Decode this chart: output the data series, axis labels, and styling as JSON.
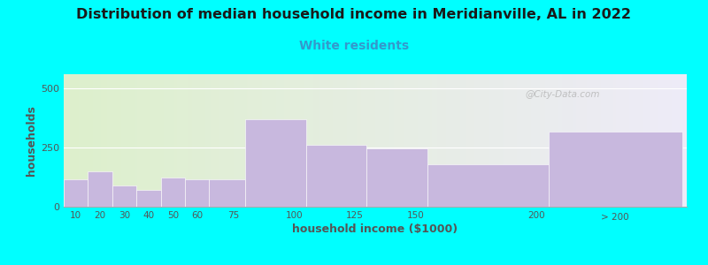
{
  "title": "Distribution of median household income in Meridianville, AL in 2022",
  "subtitle": "White residents",
  "xlabel": "household income ($1000)",
  "ylabel": "households",
  "background_color": "#00FFFF",
  "plot_bg_gradient_left": "#ddf0cc",
  "plot_bg_gradient_right": "#ece8f5",
  "bar_color": "#c8b8de",
  "bar_edge_color": "#ffffff",
  "title_fontsize": 11.5,
  "subtitle_fontsize": 10,
  "subtitle_color": "#3399cc",
  "axis_label_color": "#555555",
  "tick_label_color": "#555555",
  "categories": [
    "10",
    "20",
    "30",
    "40",
    "50",
    "60",
    "75",
    "100",
    "125",
    "150",
    "200",
    "> 200"
  ],
  "values": [
    115,
    150,
    90,
    70,
    125,
    115,
    115,
    370,
    260,
    248,
    178,
    318
  ],
  "bar_lefts": [
    5,
    15,
    25,
    35,
    45,
    55,
    65,
    80,
    105,
    130,
    155,
    205
  ],
  "bar_widths": [
    10,
    10,
    10,
    10,
    10,
    10,
    15,
    25,
    25,
    25,
    50,
    55
  ],
  "xtick_positions": [
    10,
    20,
    30,
    40,
    50,
    60,
    75,
    100,
    125,
    150,
    200
  ],
  "xtick_labels": [
    "10",
    "20",
    "30",
    "40",
    "50",
    "60",
    "75",
    "100",
    "125",
    "150",
    "200"
  ],
  "xlim": [
    5,
    262
  ],
  "ylim": [
    0,
    560
  ],
  "yticks": [
    0,
    250,
    500
  ],
  "watermark": "@City-Data.com"
}
